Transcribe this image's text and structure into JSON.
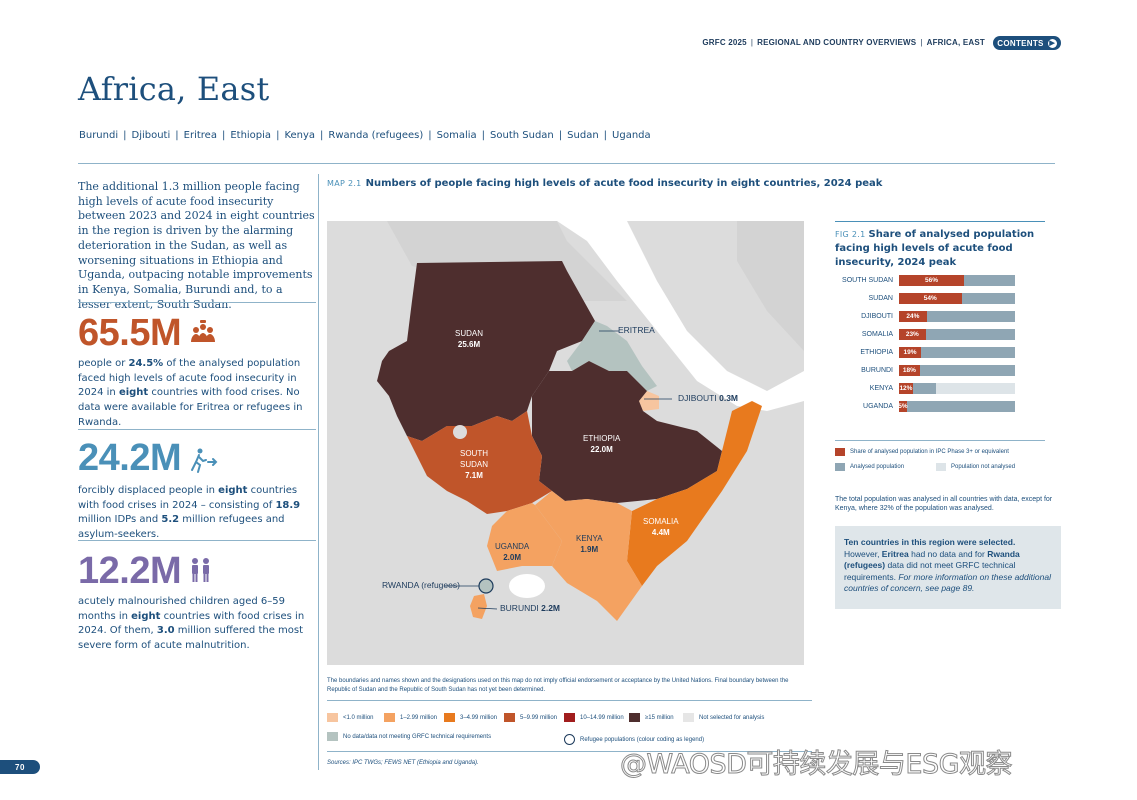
{
  "header": {
    "breadcrumb": [
      "GRFC 2025",
      "REGIONAL AND COUNTRY OVERVIEWS",
      "AFRICA, EAST"
    ],
    "contents_label": "CONTENTS"
  },
  "page": {
    "title": "Africa, East",
    "countries": [
      "Burundi",
      "Djibouti",
      "Eritrea",
      "Ethiopia",
      "Kenya",
      "Rwanda (refugees)",
      "Somalia",
      "South Sudan",
      "Sudan",
      "Uganda"
    ],
    "number": "70"
  },
  "lead_text": "The additional 1.3 million people facing high levels of acute food insecurity between 2023 and 2024 in eight countries in the region is driven by the alarming deterioration in the Sudan, as well as worsening situations in Ethiopia and Uganda, outpacing notable improvements in Kenya, Somalia, Burundi and, to a lesser extent, South Sudan.",
  "stats": [
    {
      "value": "65.5M",
      "color": "#c0552a",
      "icon": "people-hunger-icon",
      "t1": "people or ",
      "b1": "24.5%",
      "t2": " of the analysed population faced high levels of acute food insecurity in 2024 in ",
      "b2": "eight",
      "t3": " countries with food crises. No data were available for Eritrea or refugees in Rwanda."
    },
    {
      "value": "24.2M",
      "color": "#4a90b8",
      "icon": "displaced-person-icon",
      "t1": "forcibly displaced people in ",
      "b1": "eight",
      "t2": " countries with food crises in 2024 – consisting of ",
      "b2": "18.9",
      "t3": " million IDPs and ",
      "b3": "5.2",
      "t4": " million refugees and asylum-seekers."
    },
    {
      "value": "12.2M",
      "color": "#7a6aa8",
      "icon": "children-icon",
      "t1": "acutely malnourished children aged 6–59 months in ",
      "b1": "eight",
      "t2": " countries with food crises in 2024. Of them, ",
      "b2": "3.0",
      "t3": " million suffered the most severe form of acute malnutrition."
    }
  ],
  "map": {
    "label": "MAP 2.1",
    "title": "Numbers of people facing high levels of acute food insecurity in eight countries, 2024 peak",
    "regions": [
      {
        "name": "SUDAN",
        "value": "25.6M"
      },
      {
        "name": "SOUTH SUDAN",
        "line1": "SOUTH",
        "line2": "SUDAN",
        "value": "7.1M"
      },
      {
        "name": "ETHIOPIA",
        "value": "22.0M"
      },
      {
        "name": "SOMALIA",
        "value": "4.4M"
      },
      {
        "name": "KENYA",
        "value": "1.9M"
      },
      {
        "name": "UGANDA",
        "value": "2.0M"
      },
      {
        "name": "ERITREA",
        "value": ""
      },
      {
        "name": "DJIBOUTI",
        "value": "0.3M"
      },
      {
        "name": "BURUNDI",
        "value": "2.2M"
      },
      {
        "name": "RWANDA (refugees)",
        "value": ""
      }
    ],
    "note": "The boundaries and names shown and the designations used on this map do not imply official endorsement or acceptance by the United Nations. Final boundary between the Republic of Sudan and the Republic of South Sudan has not yet been determined.",
    "legend": [
      {
        "label": "<1.0 million",
        "color": "#f7c59f"
      },
      {
        "label": "1–2.99 million",
        "color": "#f4a261"
      },
      {
        "label": "3–4.99 million",
        "color": "#e87a1e"
      },
      {
        "label": "5–9.99 million",
        "color": "#c0552a"
      },
      {
        "label": "10–14.99 million",
        "color": "#a11d1d"
      },
      {
        "label": "≥15 million",
        "color": "#4e2e2e"
      },
      {
        "label": "Not selected for analysis",
        "color": "#e6e6e6"
      },
      {
        "label": "No data/data not meeting GRFC technical requirements",
        "color": "#b4c3c0"
      },
      {
        "label": "Refugee populations (colour coding as legend)",
        "color": ""
      }
    ],
    "sources": "Sources: IPC TWGs; FEWS NET (Ethiopia and Uganda)."
  },
  "chart_data": {
    "type": "bar",
    "label": "FIG 2.1",
    "title": "Share of analysed population facing high levels of acute food insecurity, 2024 peak",
    "categories": [
      "SOUTH SUDAN",
      "SUDAN",
      "DJIBOUTI",
      "SOMALIA",
      "ETHIOPIA",
      "BURUNDI",
      "KENYA",
      "UGANDA"
    ],
    "values": [
      56,
      54,
      24,
      23,
      19,
      18,
      12,
      5
    ],
    "value_labels": [
      "56%",
      "54%",
      "24%",
      "23%",
      "19%",
      "18%",
      "12%",
      "5%"
    ],
    "analysed_share": [
      100,
      100,
      100,
      100,
      100,
      100,
      32,
      100
    ],
    "legend": [
      {
        "label": "Share of analysed population in IPC Phase 3+ or equivalent",
        "color": "#b5442a"
      },
      {
        "label": "Analysed population",
        "color": "#8fa6b4"
      },
      {
        "label": "Population not analysed",
        "color": "#dde4e8"
      }
    ],
    "note": "The total population was analysed in all countries with data, except for Kenya, where 32% of the population was analysed.",
    "ylim": [
      0,
      100
    ]
  },
  "callout": {
    "b1": "Ten countries in this region were selected.",
    "t1": " However, ",
    "b2": "Eritrea",
    "t2": " had no data and for ",
    "b3": "Rwanda (refugees)",
    "t3": " data did not meet GRFC technical requirements. ",
    "i1": "For more information on these additional countries of concern, see page 89."
  },
  "watermark": "@WAOSD可持续发展与ESG观察"
}
